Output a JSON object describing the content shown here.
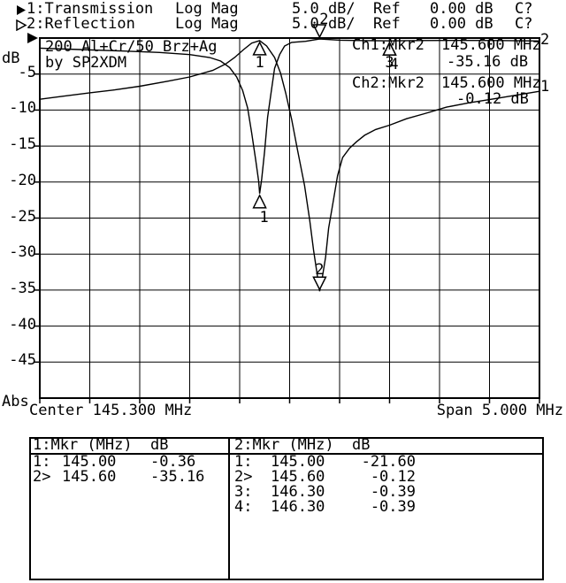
{
  "colors": {
    "foreground": "#000000",
    "background": "#ffffff"
  },
  "header": {
    "channels": [
      {
        "arrow": "filled",
        "label": "1:Transmission",
        "format": "Log Mag",
        "scale": "5.0 dB/",
        "ref_label": "Ref",
        "ref_value": "0.00 dB",
        "cal": "C?"
      },
      {
        "arrow": "hollow",
        "label": "2:Reflection",
        "format": "Log Mag",
        "scale": "5.0 dB/",
        "ref_label": "Ref",
        "ref_value": "0.00 dB",
        "cal": "C?"
      }
    ]
  },
  "plot": {
    "title_line1": "200 Al+Cr/50 Brz+Ag",
    "title_line2": "by SP2XDM",
    "readouts": [
      {
        "label": "Ch1:Mkr2",
        "freq": "145.600 MHz",
        "value": "-35.16 dB"
      },
      {
        "label": "Ch2:Mkr2",
        "freq": "145.600 MHz",
        "value": "-0.12 dB"
      }
    ],
    "trace_end_labels": [
      "2",
      "1"
    ],
    "y_unit": "dB",
    "y_bottom_label": "Abs",
    "footer_left": "Center 145.300 MHz",
    "footer_right": "Span 5.000 MHz"
  },
  "chart_data": {
    "type": "line",
    "title": "200 Al+Cr/50 Brz+Ag by SP2XDM",
    "x_axis": {
      "label": "MHz",
      "center": 145.3,
      "span": 5.0,
      "min": 142.8,
      "max": 147.8,
      "divisions": 10
    },
    "y_axis": {
      "label": "dB",
      "ref": 0.0,
      "per_div": 5.0,
      "min": -50,
      "max": 0,
      "divisions": 10,
      "tick_labels": [
        "-5",
        "-10",
        "-15",
        "-20",
        "-25",
        "-30",
        "-35",
        "-40",
        "-45"
      ]
    },
    "series": [
      {
        "name": "Transmission",
        "channel": 1,
        "points": [
          [
            142.8,
            -8.5
          ],
          [
            143.02,
            -8.1
          ],
          [
            143.3,
            -7.6
          ],
          [
            143.55,
            -7.2
          ],
          [
            143.8,
            -6.7
          ],
          [
            144.08,
            -6.0
          ],
          [
            144.3,
            -5.4
          ],
          [
            144.53,
            -4.5
          ],
          [
            144.66,
            -3.6
          ],
          [
            144.75,
            -2.7
          ],
          [
            144.84,
            -1.6
          ],
          [
            144.92,
            -0.7
          ],
          [
            145.0,
            -0.36
          ],
          [
            145.07,
            -1.1
          ],
          [
            145.15,
            -2.7
          ],
          [
            145.21,
            -4.9
          ],
          [
            145.26,
            -7.6
          ],
          [
            145.32,
            -11.3
          ],
          [
            145.38,
            -15.6
          ],
          [
            145.45,
            -20.5
          ],
          [
            145.5,
            -25.2
          ],
          [
            145.54,
            -29.5
          ],
          [
            145.58,
            -33.2
          ],
          [
            145.6,
            -35.16
          ],
          [
            145.62,
            -33.8
          ],
          [
            145.66,
            -30.4
          ],
          [
            145.69,
            -26.4
          ],
          [
            145.74,
            -22.4
          ],
          [
            145.78,
            -19.1
          ],
          [
            145.83,
            -16.6
          ],
          [
            145.9,
            -15.3
          ],
          [
            145.97,
            -14.4
          ],
          [
            146.05,
            -13.5
          ],
          [
            146.16,
            -12.7
          ],
          [
            146.3,
            -12.1
          ],
          [
            146.47,
            -11.2
          ],
          [
            146.65,
            -10.5
          ],
          [
            146.87,
            -9.6
          ],
          [
            147.09,
            -9.0
          ],
          [
            147.36,
            -8.4
          ],
          [
            147.58,
            -7.9
          ],
          [
            147.8,
            -7.4
          ]
        ]
      },
      {
        "name": "Reflection",
        "channel": 2,
        "points": [
          [
            142.8,
            -1.4
          ],
          [
            143.2,
            -1.6
          ],
          [
            143.64,
            -1.8
          ],
          [
            144.0,
            -2.0
          ],
          [
            144.3,
            -2.3
          ],
          [
            144.5,
            -2.7
          ],
          [
            144.61,
            -3.2
          ],
          [
            144.7,
            -4.1
          ],
          [
            144.77,
            -5.4
          ],
          [
            144.83,
            -7.3
          ],
          [
            144.88,
            -9.7
          ],
          [
            144.92,
            -13.2
          ],
          [
            144.96,
            -16.9
          ],
          [
            144.99,
            -19.9
          ],
          [
            145.0,
            -21.6
          ],
          [
            145.02,
            -19.6
          ],
          [
            145.05,
            -15.6
          ],
          [
            145.08,
            -11.0
          ],
          [
            145.12,
            -7.0
          ],
          [
            145.15,
            -4.2
          ],
          [
            145.2,
            -2.3
          ],
          [
            145.25,
            -1.1
          ],
          [
            145.32,
            -0.6
          ],
          [
            145.46,
            -0.45
          ],
          [
            145.6,
            -0.12
          ],
          [
            145.8,
            -0.3
          ],
          [
            146.0,
            -0.35
          ],
          [
            146.3,
            -0.39
          ],
          [
            146.6,
            -0.35
          ],
          [
            147.0,
            -0.33
          ],
          [
            147.4,
            -0.35
          ],
          [
            147.8,
            -0.4
          ]
        ]
      }
    ],
    "markers": {
      "ch1": [
        {
          "n": "1",
          "mhz": 145.0,
          "db": -0.36,
          "shape": "up"
        },
        {
          "n": "2",
          "mhz": 145.6,
          "db": -35.16,
          "shape": "down"
        }
      ],
      "ch2": [
        {
          "n": "1",
          "mhz": 145.0,
          "db": -21.6,
          "shape": "up"
        },
        {
          "n": "2",
          "mhz": 145.6,
          "db": -0.12,
          "shape": "down"
        },
        {
          "n": "3",
          "mhz": 146.3,
          "db": -0.39,
          "shape": "up"
        },
        {
          "n": "4",
          "mhz": 146.3,
          "db": -0.39,
          "shape": "up"
        }
      ]
    }
  },
  "marker_table": {
    "boxes": [
      {
        "title": "1:Mkr (MHz)  dB",
        "rows": [
          [
            "1:",
            "145.00",
            "-0.36"
          ],
          [
            "2>",
            "145.60",
            "-35.16"
          ]
        ]
      },
      {
        "title": "2:Mkr (MHz)  dB",
        "rows": [
          [
            "1:",
            "145.00",
            "-21.60"
          ],
          [
            "2>",
            "145.60",
            "-0.12"
          ],
          [
            "3:",
            "146.30",
            "-0.39"
          ],
          [
            "4:",
            "146.30",
            "-0.39"
          ]
        ]
      }
    ]
  }
}
